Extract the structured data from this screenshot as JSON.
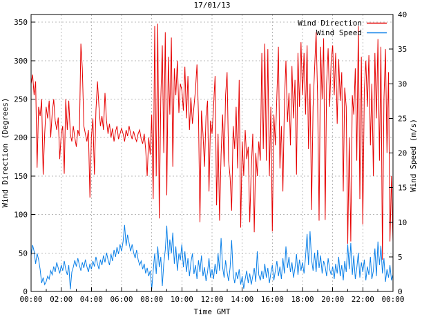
{
  "title": "17/01/13",
  "legend": [
    {
      "label": "Wind Direction",
      "color": "#e60000"
    },
    {
      "label": "Wind Speed",
      "color": "#0b80e8"
    }
  ],
  "axes": {
    "x": {
      "label": "Time GMT",
      "tick_labels": [
        "00:00",
        "02:00",
        "04:00",
        "06:00",
        "08:00",
        "10:00",
        "12:00",
        "14:00",
        "16:00",
        "18:00",
        "20:00",
        "22:00",
        "00:00"
      ]
    },
    "y_left": {
      "label": "Wind Direction (Degrees)",
      "ticks": [
        0,
        50,
        100,
        150,
        200,
        250,
        300,
        350
      ],
      "range": [
        0,
        360
      ]
    },
    "y_right": {
      "label": "Wind Speed (m/s)",
      "ticks": [
        0,
        5,
        10,
        15,
        20,
        25,
        30,
        35,
        40
      ],
      "range": [
        0,
        40
      ]
    }
  },
  "chart_data": {
    "type": "line",
    "title": "17/01/13",
    "xlabel": "Time GMT",
    "x_unit": "hours",
    "x_range": [
      0,
      24
    ],
    "x_step_hours": 0.1,
    "grid": true,
    "grid_color": "#b8b8b8",
    "legend_position": "top-right",
    "series": [
      {
        "name": "Wind Direction",
        "axis": "left",
        "color": "#e60000",
        "ylabel": "Wind Direction (Degrees)",
        "ylim": [
          0,
          360
        ],
        "values": [
          270,
          282,
          255,
          273,
          161,
          240,
          228,
          250,
          152,
          205,
          240,
          225,
          248,
          200,
          232,
          250,
          222,
          210,
          226,
          172,
          205,
          215,
          153,
          250,
          210,
          248,
          205,
          195,
          215,
          200,
          188,
          210,
          202,
          322,
          290,
          215,
          205,
          195,
          210,
          122,
          200,
          225,
          152,
          235,
          273,
          240,
          215,
          228,
          210,
          258,
          222,
          205,
          218,
          200,
          212,
          195,
          208,
          215,
          198,
          205,
          212,
          205,
          195,
          210,
          202,
          215,
          205,
          198,
          208,
          200,
          195,
          205,
          210,
          198,
          192,
          205,
          185,
          150,
          200,
          178,
          230,
          120,
          345,
          150,
          348,
          95,
          250,
          320,
          180,
          337,
          125,
          305,
          230,
          330,
          162,
          290,
          255,
          300,
          232,
          270,
          262,
          235,
          292,
          225,
          280,
          210,
          252,
          218,
          240,
          262,
          295,
          228,
          90,
          235,
          205,
          162,
          228,
          248,
          130,
          222,
          205,
          240,
          280,
          112,
          205,
          92,
          178,
          230,
          162,
          255,
          285,
          170,
          148,
          105,
          215,
          185,
          240,
          160,
          275,
          83,
          195,
          150,
          210,
          172,
          188,
          90,
          160,
          205,
          77,
          180,
          150,
          195,
          170,
          310,
          185,
          322,
          170,
          315,
          150,
          240,
          78,
          230,
          190,
          255,
          318,
          160,
          215,
          130,
          245,
          300,
          220,
          258,
          190,
          293,
          225,
          275,
          152,
          310,
          240,
          324,
          255,
          310,
          230,
          320,
          185,
          270,
          106,
          240,
          290,
          337,
          255,
          92,
          318,
          250,
          329,
          93,
          270,
          316,
          240,
          300,
          320,
          255,
          310,
          218,
          302,
          248,
          285,
          130,
          265,
          240,
          62,
          200,
          65,
          255,
          230,
          290,
          170,
          345,
          120,
          305,
          87,
          262,
          300,
          240,
          307,
          190,
          270,
          150,
          310,
          225,
          328,
          170,
          318,
          41,
          250,
          315,
          180,
          285,
          65,
          150,
          65
        ]
      },
      {
        "name": "Wind Speed",
        "axis": "right",
        "color": "#0b80e8",
        "ylabel": "Wind Speed (m/s)",
        "ylim": [
          0,
          40
        ],
        "values": [
          5.2,
          6.7,
          5.8,
          4.0,
          5.5,
          4.6,
          3.2,
          1.2,
          2.0,
          1.0,
          1.4,
          2.2,
          1.8,
          3.0,
          2.4,
          3.6,
          2.8,
          4.2,
          3.4,
          2.6,
          3.8,
          3.0,
          4.4,
          3.2,
          2.4,
          3.8,
          0.3,
          2.8,
          3.5,
          4.5,
          3.6,
          4.8,
          3.8,
          3.0,
          4.2,
          3.4,
          4.6,
          3.6,
          2.8,
          4.0,
          3.2,
          4.4,
          3.6,
          5.0,
          4.0,
          3.2,
          4.6,
          3.8,
          5.2,
          4.2,
          5.6,
          4.6,
          3.8,
          5.4,
          4.4,
          6.0,
          5.0,
          6.4,
          5.4,
          6.8,
          5.8,
          7.2,
          9.6,
          6.6,
          8.2,
          7.0,
          5.8,
          6.8,
          5.6,
          4.8,
          6.0,
          4.6,
          3.8,
          4.4,
          3.2,
          4.0,
          2.6,
          3.4,
          2.2,
          3.0,
          0.3,
          3.0,
          5.5,
          2.5,
          6.5,
          3.5,
          5.0,
          0.8,
          4.0,
          6.0,
          9.5,
          4.5,
          7.5,
          5.5,
          8.5,
          4.0,
          6.5,
          3.0,
          5.5,
          4.5,
          6.8,
          3.5,
          5.8,
          2.8,
          4.8,
          2.2,
          4.2,
          5.5,
          2.5,
          3.8,
          1.8,
          4.5,
          2.8,
          5.2,
          2.2,
          3.5,
          1.5,
          2.8,
          4.8,
          2.0,
          3.2,
          1.8,
          4.0,
          2.5,
          5.5,
          3.0,
          7.7,
          3.5,
          2.0,
          4.5,
          2.8,
          1.5,
          3.5,
          7.4,
          2.5,
          1.2,
          2.8,
          1.8,
          3.2,
          1.0,
          2.2,
          0.4,
          1.8,
          3.0,
          1.2,
          2.6,
          1.0,
          2.2,
          3.4,
          1.4,
          5.8,
          2.4,
          1.6,
          3.0,
          1.8,
          4.0,
          2.0,
          3.4,
          1.2,
          2.6,
          3.8,
          1.6,
          3.0,
          4.4,
          2.2,
          3.6,
          1.8,
          4.8,
          2.6,
          6.5,
          3.4,
          5.0,
          2.8,
          4.2,
          2.0,
          3.4,
          5.4,
          2.4,
          4.6,
          3.0,
          4.2,
          2.6,
          5.0,
          8.3,
          3.8,
          8.7,
          4.6,
          3.0,
          5.6,
          2.8,
          6.0,
          3.4,
          5.2,
          2.6,
          4.4,
          3.6,
          2.2,
          4.8,
          3.2,
          2.4,
          3.6,
          1.8,
          4.0,
          2.6,
          5.0,
          2.2,
          3.8,
          1.6,
          4.4,
          2.8,
          6.8,
          3.2,
          7.0,
          2.4,
          5.2,
          1.8,
          3.4,
          5.6,
          2.0,
          4.2,
          2.8,
          4.6,
          1.6,
          3.6,
          2.4,
          5.0,
          1.8,
          3.0,
          6.2,
          2.2,
          7.2,
          3.8,
          6.6,
          2.6,
          4.8,
          1.4,
          3.2,
          2.0,
          3.8,
          1.6,
          2.4
        ]
      }
    ]
  }
}
